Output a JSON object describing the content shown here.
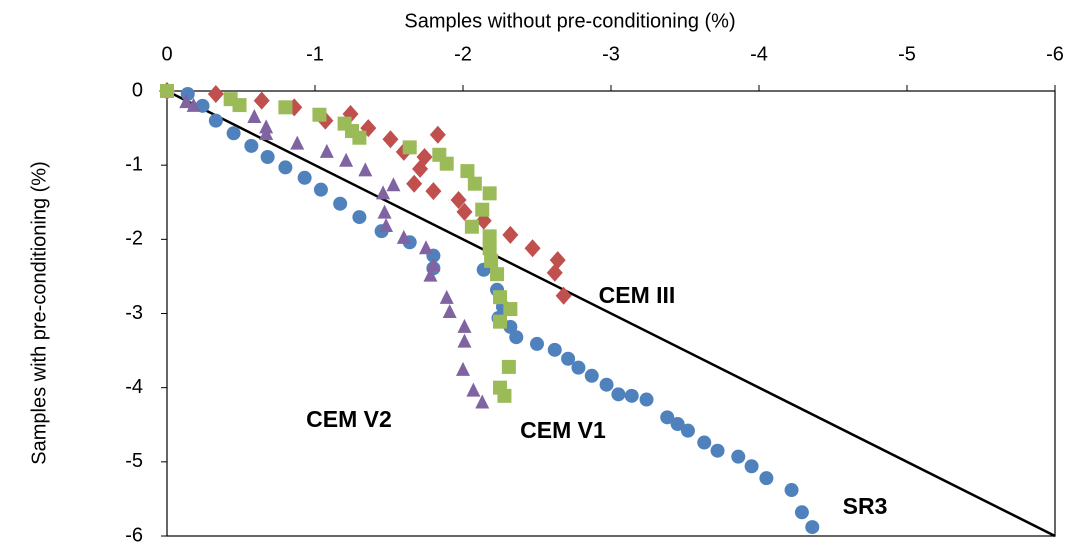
{
  "chart_data": {
    "type": "scatter",
    "x_label": "Samples without pre-conditioning (%)",
    "y_label": "Samples with pre-conditioning (%)",
    "xlim": [
      0,
      -6
    ],
    "xticks": [
      0,
      -1,
      -2,
      -3,
      -4,
      -5,
      -6
    ],
    "ylim": [
      -6,
      0
    ],
    "yticks": [
      0,
      -1,
      -2,
      -3,
      -4,
      -5,
      -6
    ],
    "reference_line": {
      "x": [
        0,
        -6
      ],
      "y": [
        0,
        -6
      ],
      "color": "#000000"
    },
    "series": [
      {
        "name": "SR3",
        "color": "#4f81bd",
        "marker": "circle",
        "x": [
          -0.14,
          -0.24,
          -0.33,
          -0.45,
          -0.57,
          -0.68,
          -0.8,
          -0.93,
          -1.04,
          -1.17,
          -1.3,
          -1.45,
          -1.64,
          -1.8,
          -1.8,
          -2.14,
          -2.23,
          -2.27,
          -2.24,
          -2.32,
          -2.36,
          -2.5,
          -2.62,
          -2.71,
          -2.78,
          -2.87,
          -2.97,
          -3.05,
          -3.14,
          -3.24,
          -3.38,
          -3.45,
          -3.52,
          -3.63,
          -3.72,
          -3.86,
          -3.95,
          -4.05,
          -4.22,
          -4.29,
          -4.36
        ],
        "values": [
          -0.04,
          -0.2,
          -0.4,
          -0.57,
          -0.74,
          -0.89,
          -1.03,
          -1.17,
          -1.33,
          -1.52,
          -1.7,
          -1.89,
          -2.04,
          -2.22,
          -2.39,
          -2.41,
          -2.68,
          -2.91,
          -3.06,
          -3.18,
          -3.32,
          -3.41,
          -3.49,
          -3.61,
          -3.73,
          -3.84,
          -3.96,
          -4.09,
          -4.11,
          -4.16,
          -4.4,
          -4.49,
          -4.58,
          -4.74,
          -4.85,
          -4.93,
          -5.06,
          -5.22,
          -5.38,
          -5.68,
          -5.88
        ]
      },
      {
        "name": "CEM III",
        "color": "#c0504d",
        "marker": "diamond",
        "x": [
          0,
          -0.33,
          -0.64,
          -0.86,
          -1.07,
          -1.24,
          -1.36,
          -1.51,
          -1.6,
          -1.74,
          -1.71,
          -1.83,
          -1.67,
          -1.8,
          -1.97,
          -2.01,
          -2.14,
          -2.32,
          -2.47,
          -2.64,
          -2.62,
          -2.68
        ],
        "values": [
          0,
          -0.04,
          -0.13,
          -0.22,
          -0.4,
          -0.31,
          -0.5,
          -0.65,
          -0.82,
          -0.89,
          -1.05,
          -0.59,
          -1.25,
          -1.35,
          -1.47,
          -1.63,
          -1.75,
          -1.94,
          -2.12,
          -2.28,
          -2.45,
          -2.76
        ]
      },
      {
        "name": "CEM V1",
        "color": "#9bbb59",
        "marker": "square",
        "x": [
          0,
          -0.43,
          -0.49,
          -0.8,
          -1.03,
          -1.2,
          -1.25,
          -1.3,
          -1.64,
          -1.84,
          -1.89,
          -2.03,
          -2.08,
          -2.18,
          -2.13,
          -2.06,
          -2.18,
          -2.18,
          -2.19,
          -2.23,
          -2.25,
          -2.32,
          -2.25,
          -2.31,
          -2.25,
          -2.28
        ],
        "values": [
          0,
          -0.11,
          -0.19,
          -0.22,
          -0.32,
          -0.44,
          -0.54,
          -0.63,
          -0.76,
          -0.86,
          -0.98,
          -1.08,
          -1.25,
          -1.38,
          -1.6,
          -1.83,
          -1.96,
          -2.12,
          -2.29,
          -2.47,
          -2.78,
          -2.94,
          -3.11,
          -3.72,
          -4.0,
          -4.11
        ]
      },
      {
        "name": "CEM V2",
        "color": "#8064a2",
        "marker": "triangle",
        "x": [
          -0.13,
          -0.18,
          -0.59,
          -0.67,
          -0.67,
          -0.88,
          -1.08,
          -1.21,
          -1.34,
          -1.53,
          -1.46,
          -1.47,
          -1.48,
          -1.6,
          -1.75,
          -1.8,
          -1.78,
          -1.89,
          -1.91,
          -2.01,
          -2.01,
          -2.0,
          -2.07,
          -2.13
        ],
        "values": [
          -0.15,
          -0.2,
          -0.35,
          -0.49,
          -0.58,
          -0.71,
          -0.82,
          -0.94,
          -1.07,
          -1.27,
          -1.38,
          -1.64,
          -1.82,
          -1.98,
          -2.12,
          -2.35,
          -2.49,
          -2.79,
          -2.98,
          -3.18,
          -3.38,
          -3.76,
          -4.04,
          -4.2
        ]
      }
    ]
  }
}
